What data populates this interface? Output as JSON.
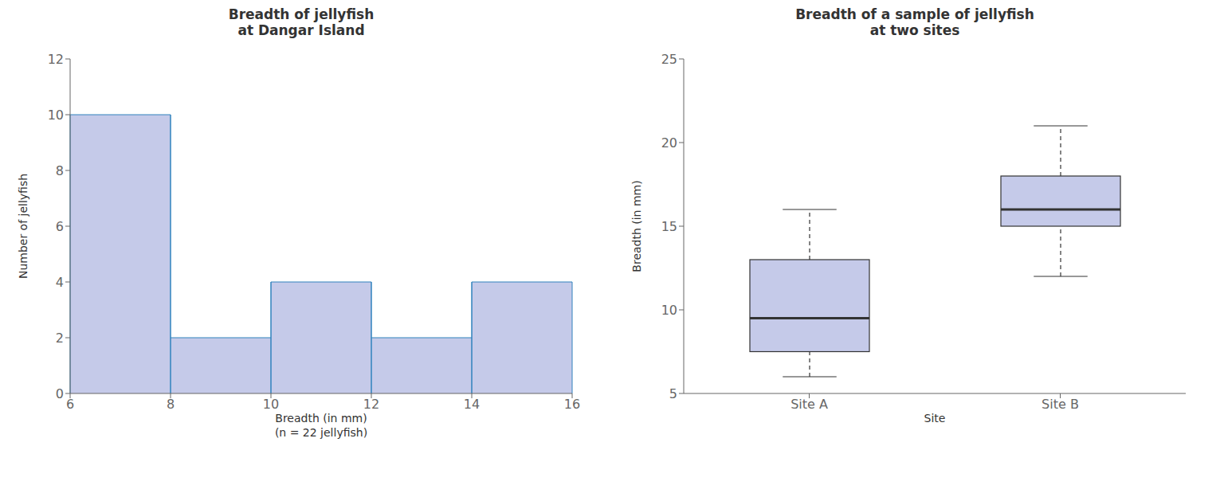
{
  "chart_data": [
    {
      "type": "histogram",
      "title": "Breadth of jellyfish\nat Dangar Island",
      "x_label": "Breadth (in mm)\n(n = 22 jellyfish)",
      "y_label": "Number of jellyfish",
      "bins": [
        6,
        8,
        10,
        12,
        14,
        16
      ],
      "values": [
        10,
        2,
        4,
        2,
        4
      ],
      "color": "#C5CAE9",
      "xlim": [
        6,
        16
      ],
      "xticks": [
        6,
        8,
        10,
        12,
        14,
        16
      ],
      "ylim": [
        0,
        12
      ],
      "yticks": [
        0,
        2,
        4,
        6,
        8,
        10,
        12
      ],
      "grid": false
    },
    {
      "type": "box",
      "title": "Breadth of a sample of jellyfish\nat two sites",
      "x_label": "Site",
      "y_label": "Breadth (in mm)",
      "categories": [
        "Site A",
        "Site B"
      ],
      "whisker_low": [
        6,
        12
      ],
      "q1": [
        7.5,
        15
      ],
      "median": [
        9.5,
        16
      ],
      "q3": [
        13,
        18
      ],
      "whisker_high": [
        16,
        21
      ],
      "color": "#C5CAE9",
      "ylim": [
        5,
        25
      ],
      "yticks": [
        5,
        10,
        15,
        20,
        25
      ],
      "grid": false
    }
  ]
}
